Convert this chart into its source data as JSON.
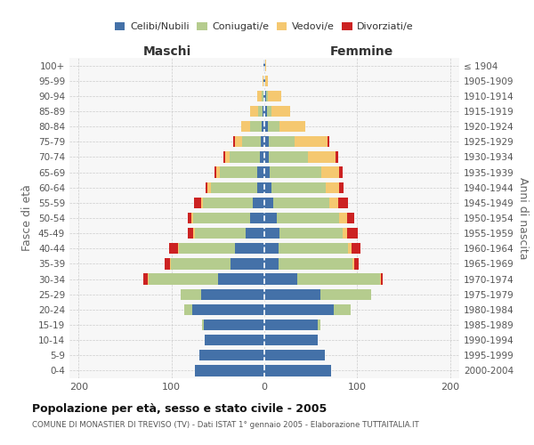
{
  "age_groups": [
    "0-4",
    "5-9",
    "10-14",
    "15-19",
    "20-24",
    "25-29",
    "30-34",
    "35-39",
    "40-44",
    "45-49",
    "50-54",
    "55-59",
    "60-64",
    "65-69",
    "70-74",
    "75-79",
    "80-84",
    "85-89",
    "90-94",
    "95-99",
    "100+"
  ],
  "birth_years": [
    "2000-2004",
    "1995-1999",
    "1990-1994",
    "1985-1989",
    "1980-1984",
    "1975-1979",
    "1970-1974",
    "1965-1969",
    "1960-1964",
    "1955-1959",
    "1950-1954",
    "1945-1949",
    "1940-1944",
    "1935-1939",
    "1930-1934",
    "1925-1929",
    "1920-1924",
    "1915-1919",
    "1910-1914",
    "1905-1909",
    "≤ 1904"
  ],
  "colors": {
    "celibi": "#4471a8",
    "coniugati": "#b5cc8e",
    "vedovi": "#f5c870",
    "divorziati": "#cc2222"
  },
  "maschi": {
    "celibi": [
      75,
      70,
      64,
      65,
      78,
      68,
      50,
      36,
      32,
      20,
      15,
      12,
      8,
      8,
      5,
      4,
      3,
      2,
      1,
      1,
      1
    ],
    "coniugati": [
      0,
      0,
      0,
      2,
      8,
      22,
      75,
      65,
      60,
      55,
      62,
      54,
      50,
      40,
      32,
      20,
      12,
      5,
      2,
      0,
      0
    ],
    "vedovi": [
      0,
      0,
      0,
      0,
      0,
      0,
      1,
      1,
      1,
      2,
      2,
      2,
      3,
      4,
      5,
      8,
      10,
      8,
      5,
      1,
      0
    ],
    "divorziati": [
      0,
      0,
      0,
      0,
      0,
      0,
      4,
      5,
      10,
      5,
      3,
      8,
      2,
      2,
      2,
      2,
      0,
      0,
      0,
      0,
      0
    ]
  },
  "femmine": {
    "nubili": [
      72,
      65,
      58,
      58,
      75,
      60,
      35,
      15,
      15,
      16,
      13,
      10,
      8,
      6,
      5,
      5,
      4,
      3,
      2,
      1,
      1
    ],
    "coniugate": [
      0,
      0,
      0,
      2,
      18,
      55,
      90,
      80,
      75,
      68,
      68,
      60,
      58,
      55,
      42,
      28,
      12,
      5,
      2,
      0,
      0
    ],
    "vedove": [
      0,
      0,
      0,
      0,
      0,
      0,
      1,
      2,
      4,
      5,
      8,
      10,
      15,
      20,
      30,
      35,
      28,
      20,
      14,
      3,
      1
    ],
    "divorziate": [
      0,
      0,
      0,
      0,
      0,
      0,
      2,
      5,
      10,
      12,
      8,
      10,
      4,
      3,
      3,
      2,
      0,
      0,
      0,
      0,
      0
    ]
  },
  "title": "Popolazione per età, sesso e stato civile - 2005",
  "subtitle": "COMUNE DI MONASTIER DI TREVISO (TV) - Dati ISTAT 1° gennaio 2005 - Elaborazione TUTTAITALIA.IT",
  "xlabel_maschi": "Maschi",
  "xlabel_femmine": "Femmine",
  "ylabel_left": "Fasce di età",
  "ylabel_right": "Anni di nascita",
  "xlim": 210,
  "legend_labels": [
    "Celibi/Nubili",
    "Coniugati/e",
    "Vedovi/e",
    "Divorziati/e"
  ]
}
